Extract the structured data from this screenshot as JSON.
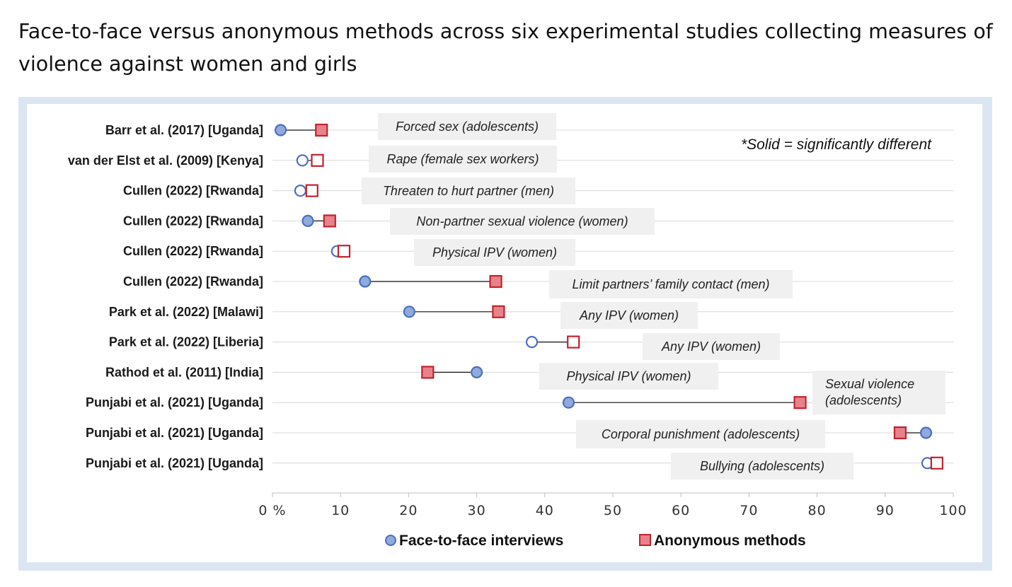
{
  "title": "Face-to-face versus anonymous methods across six experimental studies collecting measures of violence against women and girls",
  "note": "*Solid = significantly different",
  "legend": {
    "face_to_face": "Face-to-face interviews",
    "anonymous": "Anonymous methods"
  },
  "colors": {
    "face_fill": "#8faadc",
    "face_stroke": "#4c6fbf",
    "anon_fill": "#e8828a",
    "anon_stroke": "#c0232d",
    "gridline": "#d9d9d9",
    "annotation_bg": "#f0f0f0",
    "frame": "#dce6f2"
  },
  "chart_data": {
    "type": "dumbbell",
    "x_ticks": [
      "0 %",
      "10",
      "20",
      "30",
      "40",
      "50",
      "60",
      "70",
      "80",
      "90",
      "100"
    ],
    "xlim": [
      0,
      100
    ],
    "series": [
      {
        "name": "Face-to-face interviews",
        "marker": "circle"
      },
      {
        "name": "Anonymous methods",
        "marker": "square"
      }
    ],
    "rows": [
      {
        "label": "Barr et al. (2017) [Uganda]",
        "measure": "Forced sex (adolescents)",
        "face": 1.2,
        "anon": 7.2,
        "significant": true
      },
      {
        "label": "van der Elst et al. (2009) [Kenya]",
        "measure": "Rape (female sex workers)",
        "face": 4.4,
        "anon": 6.6,
        "significant": false
      },
      {
        "label": "Cullen (2022) [Rwanda]",
        "measure": "Threaten to hurt partner (men)",
        "face": 4.1,
        "anon": 5.8,
        "significant": false
      },
      {
        "label": "Cullen (2022) [Rwanda]",
        "measure": "Non-partner sexual violence (women)",
        "face": 5.2,
        "anon": 8.4,
        "significant": true
      },
      {
        "label": "Cullen (2022) [Rwanda]",
        "measure": "Physical IPV (women)",
        "face": 9.5,
        "anon": 10.5,
        "significant": false
      },
      {
        "label": "Cullen (2022) [Rwanda]",
        "measure": "Limit partners’ family contact (men)",
        "face": 13.6,
        "anon": 32.8,
        "significant": true
      },
      {
        "label": "Park et al. (2022) [Malawi]",
        "measure": "Any IPV (women)",
        "face": 20.1,
        "anon": 33.2,
        "significant": true
      },
      {
        "label": "Park et al. (2022) [Liberia]",
        "measure": "Any IPV (women)",
        "face": 38.1,
        "anon": 44.2,
        "significant": false
      },
      {
        "label": "Rathod et al. (2011) [India]",
        "measure": "Physical IPV (women)",
        "face": 30.0,
        "anon": 22.8,
        "significant": true
      },
      {
        "label": "Punjabi et al. (2021) [Uganda]",
        "measure": "Sexual violence (adolescents)",
        "face": 43.5,
        "anon": 77.5,
        "significant": true
      },
      {
        "label": "Punjabi et al. (2021) [Uganda]",
        "measure": "Corporal punishment (adolescents)",
        "face": 96.0,
        "anon": 92.2,
        "significant": true
      },
      {
        "label": "Punjabi et al. (2021) [Uganda]",
        "measure": "Bullying (adolescents)",
        "face": 96.2,
        "anon": 97.6,
        "significant": false
      }
    ]
  }
}
